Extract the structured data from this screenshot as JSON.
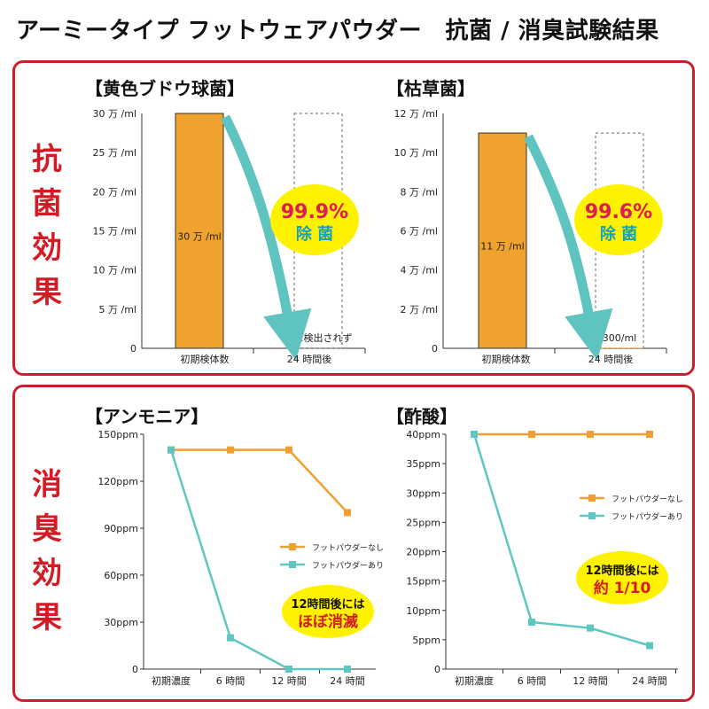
{
  "title": "アーミータイプ フットウェアパウダー　抗菌 / 消臭試験結果",
  "panels": {
    "antibacterial": {
      "label": [
        "抗",
        "菌",
        "効",
        "果"
      ]
    },
    "deodorant": {
      "label": [
        "消",
        "臭",
        "効",
        "果"
      ]
    }
  },
  "colors": {
    "orange": "#f0a22e",
    "teal": "#5fc4bf",
    "red": "#d41a24",
    "yellow": "#fff200",
    "lineOrange": "#f0a030",
    "lineTeal": "#5fc7c0"
  },
  "chart_data": [
    {
      "type": "bar",
      "title": "【黄色ブドウ球菌】",
      "categories": [
        "初期検体数",
        "24 時間後"
      ],
      "values": [
        30,
        0
      ],
      "unit": "万 /ml",
      "ylim": [
        0,
        30
      ],
      "yticks": [
        "0",
        "5 万 /ml",
        "10 万 /ml",
        "15 万 /ml",
        "20 万 /ml",
        "25 万 /ml",
        "30 万 /ml"
      ],
      "bar_labels": [
        "30 万 /ml",
        "ほぼ検出されず"
      ],
      "badge": {
        "percent": "99.9%",
        "text": "除 菌"
      }
    },
    {
      "type": "bar",
      "title": "【枯草菌】",
      "categories": [
        "初期検体数",
        "24 時間後"
      ],
      "values": [
        11,
        0.03
      ],
      "unit": "万 /ml",
      "ylim": [
        0,
        12
      ],
      "yticks": [
        "0",
        "2 万 /ml",
        "4 万 /ml",
        "6 万 /ml",
        "8 万 /ml",
        "10 万 /ml",
        "12 万 /ml"
      ],
      "bar_labels": [
        "11 万 /ml",
        "300/ml"
      ],
      "badge": {
        "percent": "99.6%",
        "text": "除 菌"
      }
    },
    {
      "type": "line",
      "title": "【アンモニア】",
      "categories": [
        "初期濃度",
        "6 時間",
        "12 時間",
        "24 時間"
      ],
      "ylim": [
        0,
        150
      ],
      "yticks": [
        "0",
        "30ppm",
        "60ppm",
        "90ppm",
        "120ppm",
        "150ppm"
      ],
      "series": [
        {
          "name": "フットパウダーなし",
          "values": [
            140,
            140,
            140,
            100
          ]
        },
        {
          "name": "フットパウダーあり",
          "values": [
            140,
            20,
            0,
            0
          ]
        }
      ],
      "legend": "center-right",
      "badge": {
        "line1": "12時間後には",
        "line2": "ほぼ消滅"
      }
    },
    {
      "type": "line",
      "title": "【酢酸】",
      "categories": [
        "初期濃度",
        "6 時間",
        "12 時間",
        "24 時間"
      ],
      "ylim": [
        0,
        40
      ],
      "yticks": [
        "0",
        "5ppm",
        "10ppm",
        "15ppm",
        "20ppm",
        "25ppm",
        "30ppm",
        "35ppm",
        "40ppm"
      ],
      "series": [
        {
          "name": "フットパウダーなし",
          "values": [
            40,
            40,
            40,
            40
          ]
        },
        {
          "name": "フットパウダーあり",
          "values": [
            40,
            8,
            7,
            4
          ]
        }
      ],
      "legend": "upper-right",
      "badge": {
        "line1": "12時間後には",
        "line2": "約 1/10"
      }
    }
  ]
}
